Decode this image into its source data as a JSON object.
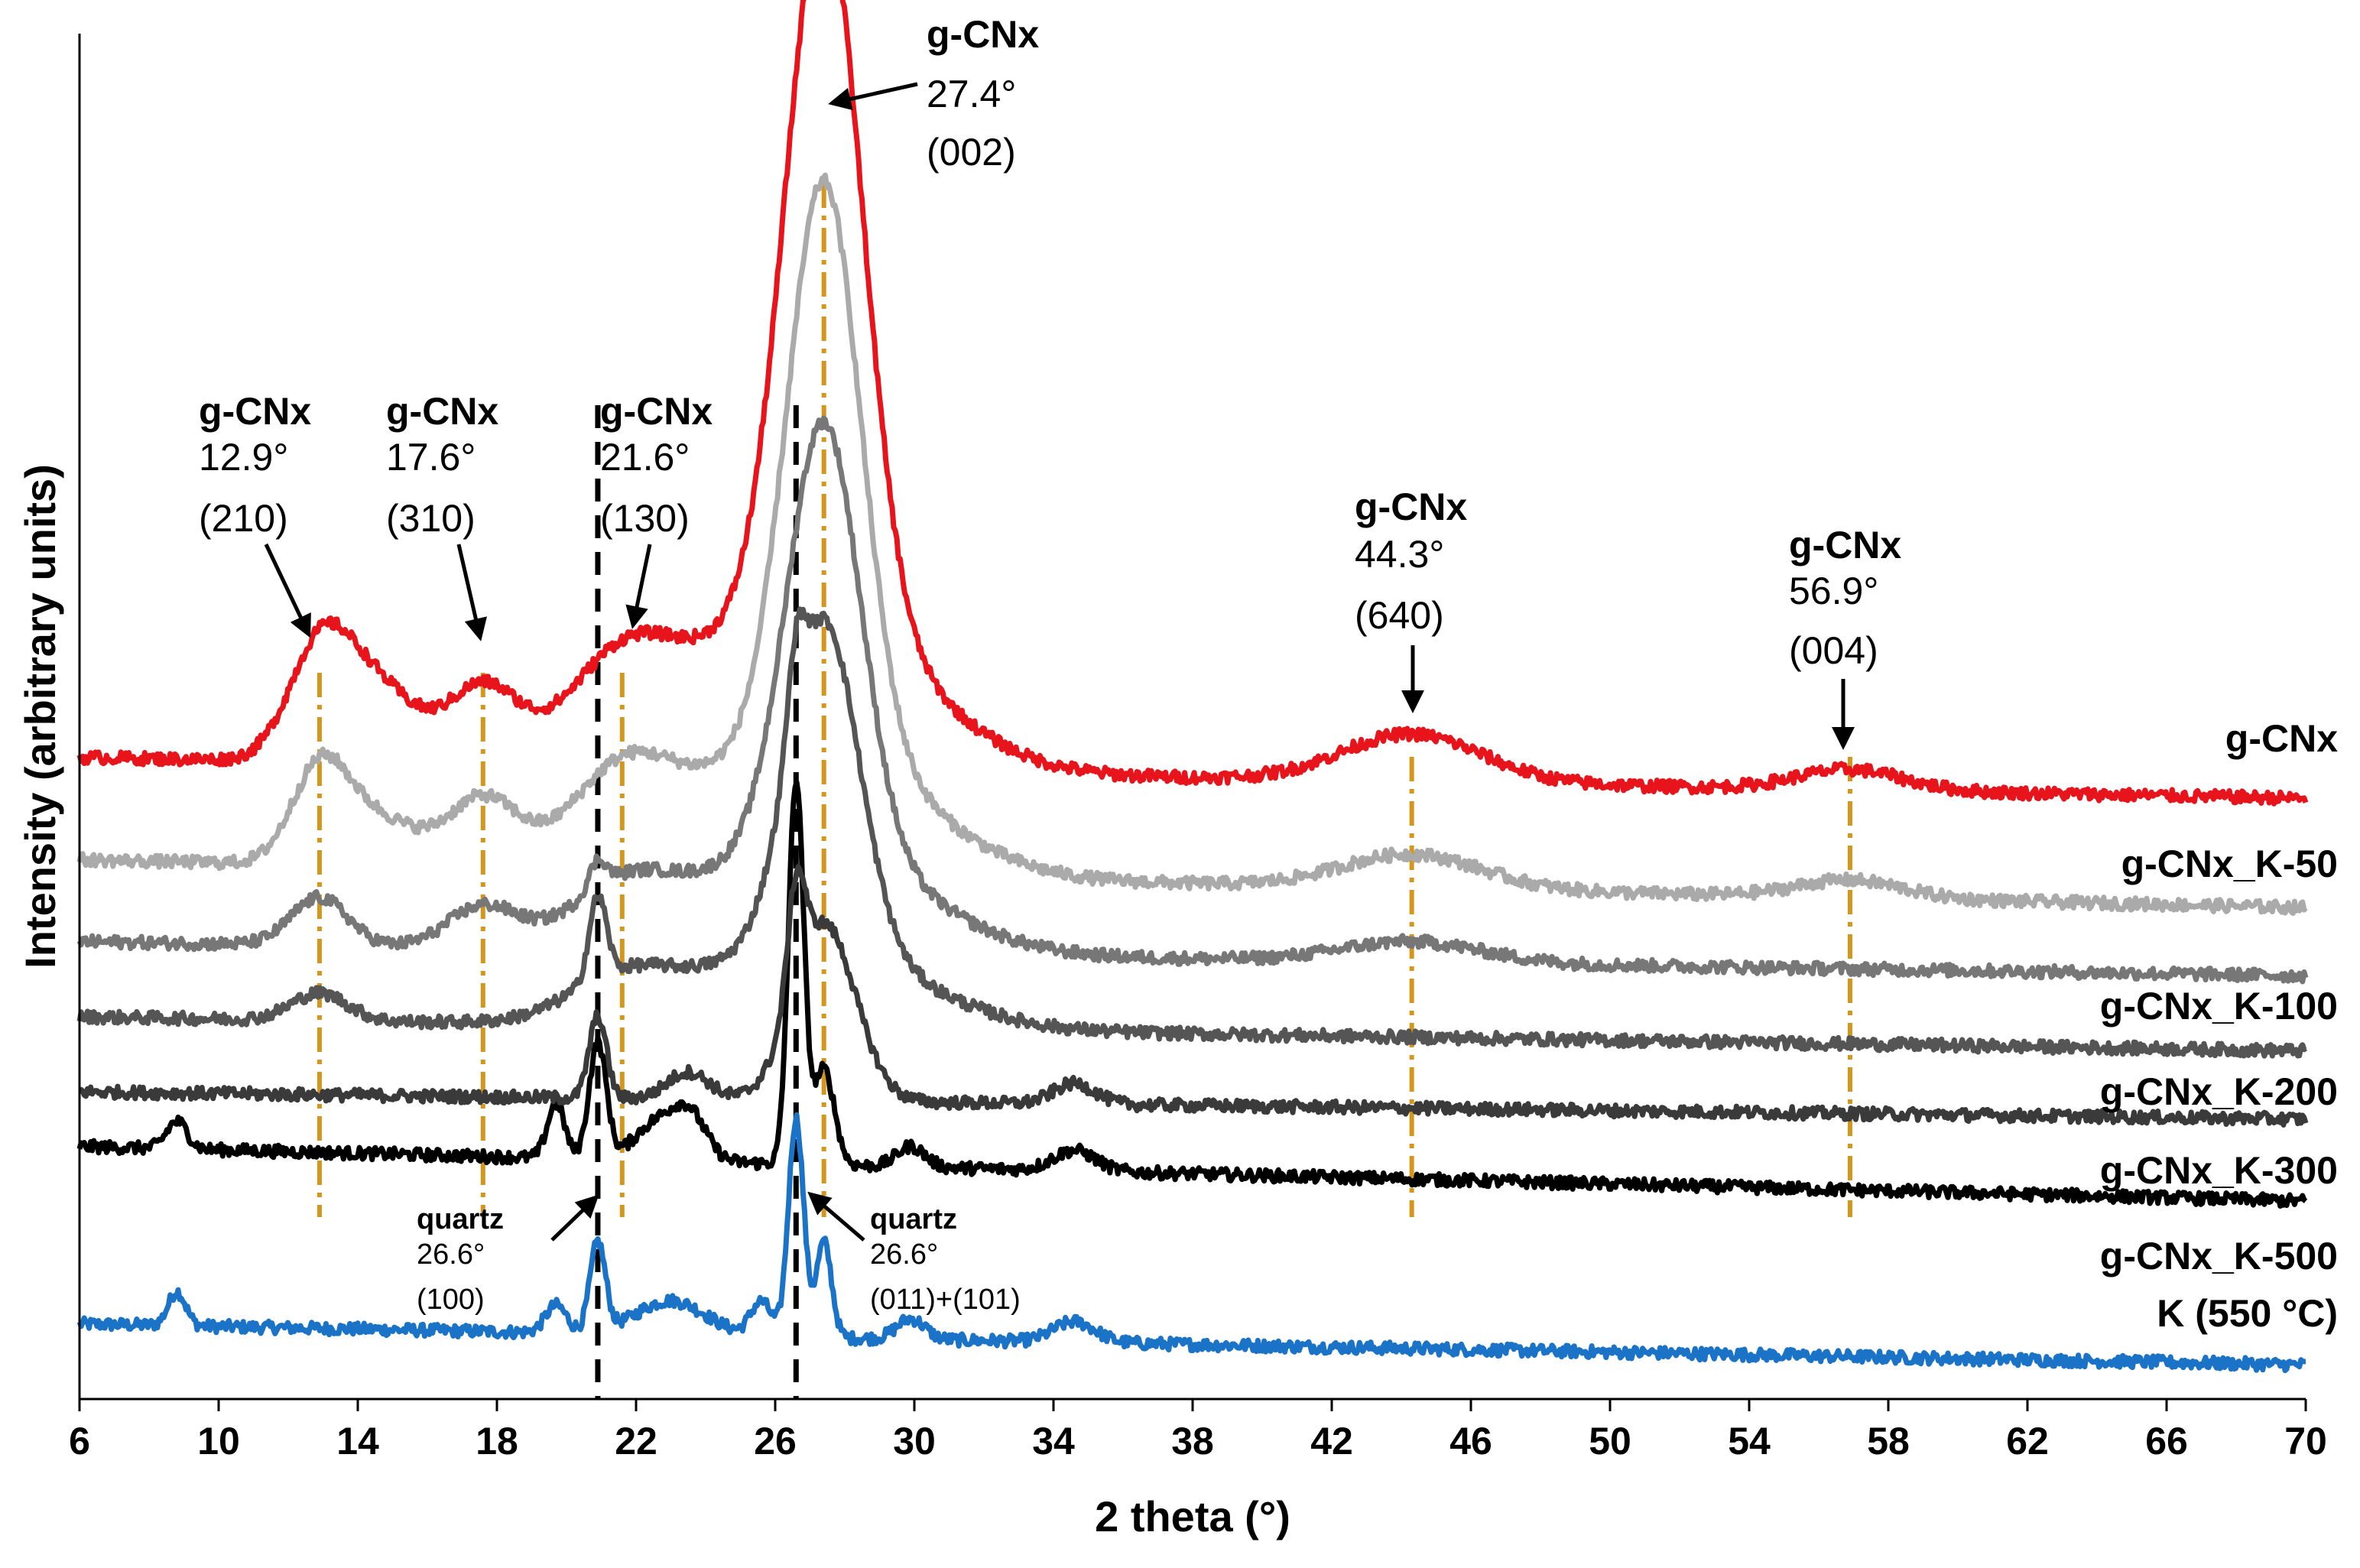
{
  "chart_data": {
    "type": "line",
    "title": "",
    "xlabel": "2 theta (°)",
    "ylabel": "Intensity (arbitrary units)",
    "xlim": [
      6,
      70
    ],
    "ylim": [
      0,
      100
    ],
    "x_ticks": [
      "6",
      "10",
      "14",
      "18",
      "22",
      "26",
      "30",
      "34",
      "38",
      "42",
      "46",
      "50",
      "54",
      "58",
      "62",
      "66",
      "70"
    ],
    "y_ticks_shown": false,
    "legend_placement": "right, series labels next to each trace",
    "series": [
      {
        "name": "g-CNx",
        "color": "#e8141c",
        "baseline_start": 47,
        "baseline_end": 44,
        "peaks": [
          {
            "x": 12.9,
            "height": 7.5,
            "width": 0.9
          },
          {
            "x": 14.5,
            "height": 5.5,
            "width": 1.2
          },
          {
            "x": 17.6,
            "height": 5.5,
            "width": 1.0
          },
          {
            "x": 21.6,
            "height": 7,
            "width": 1.6
          },
          {
            "x": 27.4,
            "height": 51,
            "width": 1.1
          },
          {
            "x": 27.0,
            "height": 12,
            "width": 3.0
          },
          {
            "x": 44.3,
            "height": 3.5,
            "width": 2.0
          },
          {
            "x": 56.9,
            "height": 1.5,
            "width": 1.5
          }
        ]
      },
      {
        "name": "g-CNx_K-50",
        "color": "#aaaaaa",
        "baseline_start": 39.5,
        "baseline_end": 36,
        "peaks": [
          {
            "x": 12.9,
            "height": 6.5,
            "width": 0.8
          },
          {
            "x": 14.5,
            "height": 3.5,
            "width": 1.2
          },
          {
            "x": 17.6,
            "height": 5,
            "width": 1.0
          },
          {
            "x": 21.6,
            "height": 6.5,
            "width": 1.5
          },
          {
            "x": 27.4,
            "height": 41,
            "width": 1.05
          },
          {
            "x": 27.0,
            "height": 10,
            "width": 3.0
          },
          {
            "x": 44.3,
            "height": 2.5,
            "width": 2.0
          },
          {
            "x": 56.9,
            "height": 1.3,
            "width": 1.5
          }
        ]
      },
      {
        "name": "g-CNx_K-100",
        "color": "#777777",
        "baseline_start": 33.5,
        "baseline_end": 31,
        "peaks": [
          {
            "x": 12.9,
            "height": 3.5,
            "width": 0.8
          },
          {
            "x": 17.6,
            "height": 3,
            "width": 1.0
          },
          {
            "x": 20.9,
            "height": 2,
            "width": 0.25
          },
          {
            "x": 21.6,
            "height": 4,
            "width": 1.5
          },
          {
            "x": 27.4,
            "height": 31,
            "width": 1.05
          },
          {
            "x": 27.0,
            "height": 8,
            "width": 3.0
          },
          {
            "x": 44.3,
            "height": 1.5,
            "width": 2.0
          }
        ]
      },
      {
        "name": "g-CNx_K-200",
        "color": "#555555",
        "baseline_start": 28,
        "baseline_end": 25.5,
        "peaks": [
          {
            "x": 12.9,
            "height": 2,
            "width": 0.8
          },
          {
            "x": 20.9,
            "height": 6,
            "width": 0.25
          },
          {
            "x": 21.6,
            "height": 3,
            "width": 1.5
          },
          {
            "x": 26.6,
            "height": 6,
            "width": 0.25
          },
          {
            "x": 27.4,
            "height": 24,
            "width": 1.0
          },
          {
            "x": 27.0,
            "height": 6,
            "width": 3.0
          }
        ]
      },
      {
        "name": "g-CNx_K-300",
        "color": "#3a3a3a",
        "baseline_start": 22.5,
        "baseline_end": 20.5,
        "peaks": [
          {
            "x": 20.9,
            "height": 6,
            "width": 0.25
          },
          {
            "x": 23.5,
            "height": 2,
            "width": 0.6
          },
          {
            "x": 26.6,
            "height": 8,
            "width": 0.25
          },
          {
            "x": 27.4,
            "height": 13,
            "width": 0.9
          },
          {
            "x": 34.6,
            "height": 1.5,
            "width": 0.6
          }
        ]
      },
      {
        "name": "g-CNx_K-500",
        "color": "#000000",
        "baseline_start": 18.5,
        "baseline_end": 14.5,
        "peaks": [
          {
            "x": 8.8,
            "height": 2,
            "width": 0.3
          },
          {
            "x": 19.7,
            "height": 4,
            "width": 0.25
          },
          {
            "x": 20.9,
            "height": 8.5,
            "width": 0.25
          },
          {
            "x": 22.5,
            "height": 2.5,
            "width": 0.6
          },
          {
            "x": 23.5,
            "height": 3.5,
            "width": 0.5
          },
          {
            "x": 26.6,
            "height": 28,
            "width": 0.22
          },
          {
            "x": 27.4,
            "height": 7,
            "width": 0.3
          },
          {
            "x": 29.9,
            "height": 1.5,
            "width": 0.4
          },
          {
            "x": 34.6,
            "height": 1.5,
            "width": 0.6
          }
        ]
      },
      {
        "name": "K (550 °C)",
        "color": "#1a73c6",
        "baseline_start": 5.5,
        "baseline_end": 2.5,
        "peaks": [
          {
            "x": 8.8,
            "height": 2.5,
            "width": 0.25
          },
          {
            "x": 19.7,
            "height": 2,
            "width": 0.3
          },
          {
            "x": 20.9,
            "height": 6.5,
            "width": 0.22
          },
          {
            "x": 23.0,
            "height": 2.5,
            "width": 1.0
          },
          {
            "x": 25.6,
            "height": 2.5,
            "width": 0.3
          },
          {
            "x": 26.6,
            "height": 16,
            "width": 0.22
          },
          {
            "x": 27.4,
            "height": 7,
            "width": 0.22
          },
          {
            "x": 29.9,
            "height": 1.5,
            "width": 0.4
          },
          {
            "x": 34.6,
            "height": 1.5,
            "width": 0.6
          }
        ]
      }
    ],
    "reference_lines": [
      {
        "x": 12.9,
        "style": "dash-dot",
        "color": "#d4961c"
      },
      {
        "x": 17.6,
        "style": "dash-dot",
        "color": "#d4961c"
      },
      {
        "x": 21.6,
        "style": "dash-dot",
        "color": "#d4961c"
      },
      {
        "x": 27.4,
        "style": "dash-dot",
        "color": "#d4961c"
      },
      {
        "x": 44.3,
        "style": "dash-dot",
        "color": "#d4961c"
      },
      {
        "x": 56.9,
        "style": "dash-dot",
        "color": "#d4961c"
      },
      {
        "x": 20.9,
        "style": "dashed",
        "color": "#000000"
      },
      {
        "x": 26.6,
        "style": "dashed",
        "color": "#000000"
      }
    ],
    "annotations": [
      {
        "name": "g-CNx",
        "lines": [
          "12.9°",
          "(210)"
        ]
      },
      {
        "name": "g-CNx",
        "lines": [
          "17.6°",
          "(310)"
        ]
      },
      {
        "name": "g-CNx",
        "lines": [
          "21.6°",
          "(130)"
        ]
      },
      {
        "name": "g-CNx",
        "lines": [
          "27.4°",
          "(002)"
        ]
      },
      {
        "name": "g-CNx",
        "lines": [
          "44.3°",
          "(640)"
        ]
      },
      {
        "name": "g-CNx",
        "lines": [
          "56.9°",
          "(004)"
        ]
      },
      {
        "name": "quartz",
        "lines": [
          "26.6°",
          "(100)"
        ]
      },
      {
        "name": "quartz",
        "lines": [
          "26.6°",
          "(011)+(101)"
        ]
      }
    ]
  }
}
